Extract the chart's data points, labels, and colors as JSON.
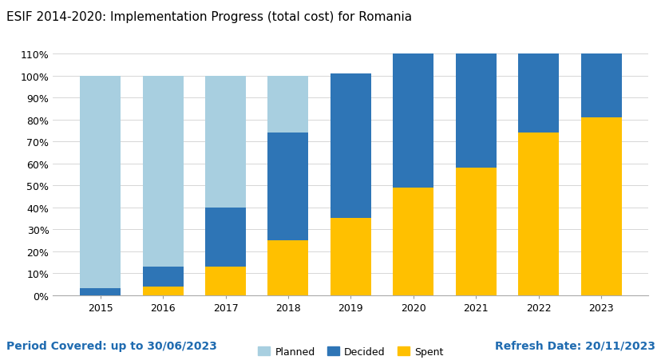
{
  "title": "ESIF 2014-2020: Implementation Progress (total cost) for Romania",
  "categories": [
    "2015",
    "2016",
    "2017",
    "2018",
    "2019",
    "2020",
    "2021",
    "2022",
    "2023"
  ],
  "planned": [
    100,
    100,
    100,
    100,
    100,
    100,
    100,
    100,
    100
  ],
  "decided": [
    3,
    13,
    40,
    74,
    101,
    110,
    110,
    110,
    110
  ],
  "spent": [
    0,
    4,
    13,
    25,
    35,
    49,
    58,
    74,
    81
  ],
  "color_planned": "#a8cfe0",
  "color_decided": "#2e75b6",
  "color_spent": "#ffc000",
  "color_title": "#000000",
  "color_footer_left": "#1f6bb0",
  "color_footer_right": "#1f6bb0",
  "footer_left": "Period Covered: up to 30/06/2023",
  "footer_right": "Refresh Date: 20/11/2023",
  "ylabel_ticks": [
    0,
    10,
    20,
    30,
    40,
    50,
    60,
    70,
    80,
    90,
    100,
    110
  ],
  "ylim": [
    0,
    115
  ],
  "background_color": "#ffffff",
  "bar_width": 0.65,
  "legend_labels": [
    "Planned",
    "Decided",
    "Spent"
  ],
  "title_fontsize": 11,
  "footer_fontsize": 10,
  "tick_fontsize": 9,
  "legend_fontsize": 9
}
